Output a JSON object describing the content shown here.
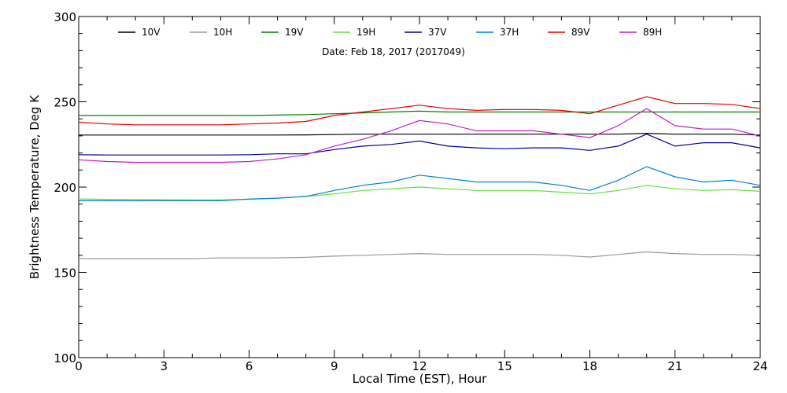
{
  "chart_data": {
    "type": "line",
    "title": "",
    "annotation": "Date: Feb 18, 2017 (2017049)",
    "xlabel": "Local Time (EST), Hour",
    "ylabel": "Brightness Temperature, Deg K",
    "xlim": [
      0,
      24
    ],
    "ylim": [
      100,
      300
    ],
    "xticks": [
      0,
      3,
      6,
      9,
      12,
      15,
      18,
      21,
      24
    ],
    "yticks": [
      100,
      150,
      200,
      250,
      300
    ],
    "grid": false,
    "legend_position": "top",
    "series": [
      {
        "name": "10V",
        "color": "#000000",
        "x": [
          0,
          1,
          2,
          3,
          4,
          5,
          6,
          7,
          8,
          9,
          10,
          11,
          12,
          13,
          14,
          15,
          16,
          17,
          18,
          19,
          20,
          21,
          22,
          23,
          24
        ],
        "y": [
          230.5,
          230.5,
          230.5,
          230.5,
          230.5,
          230.5,
          230.5,
          230.5,
          230.6,
          230.8,
          231,
          231,
          231,
          231,
          231,
          231,
          231,
          231,
          231,
          231,
          231.5,
          231,
          231,
          231,
          230.5
        ]
      },
      {
        "name": "10H",
        "color": "#9a9a9a",
        "x": [
          0,
          1,
          2,
          3,
          4,
          5,
          6,
          7,
          8,
          9,
          10,
          11,
          12,
          13,
          14,
          15,
          16,
          17,
          18,
          19,
          20,
          21,
          22,
          23,
          24
        ],
        "y": [
          158,
          158,
          158,
          158,
          158,
          158.5,
          158.5,
          158.5,
          158.8,
          159.5,
          160,
          160.5,
          161,
          160.5,
          160.5,
          160.5,
          160.5,
          160,
          159,
          160.5,
          162,
          161,
          160.5,
          160.5,
          160
        ]
      },
      {
        "name": "19V",
        "color": "#008000",
        "x": [
          0,
          1,
          2,
          3,
          4,
          5,
          6,
          7,
          8,
          9,
          10,
          11,
          12,
          13,
          14,
          15,
          16,
          17,
          18,
          19,
          20,
          21,
          22,
          23,
          24
        ],
        "y": [
          242,
          242,
          242,
          242,
          242,
          242,
          242,
          242.2,
          242.5,
          243,
          243.5,
          244,
          244.5,
          244,
          244,
          244,
          244,
          244,
          244,
          244,
          244,
          244,
          244,
          244,
          244
        ]
      },
      {
        "name": "19H",
        "color": "#66dd44",
        "x": [
          0,
          1,
          2,
          3,
          4,
          5,
          6,
          7,
          8,
          9,
          10,
          11,
          12,
          13,
          14,
          15,
          16,
          17,
          18,
          19,
          20,
          21,
          22,
          23,
          24
        ],
        "y": [
          193,
          192.8,
          192.7,
          192.6,
          192.5,
          192.5,
          192.8,
          193.5,
          194.5,
          196,
          198,
          199,
          200,
          199,
          198,
          198,
          198,
          197,
          196,
          198,
          201,
          199,
          198,
          198.5,
          197.5
        ]
      },
      {
        "name": "37V",
        "color": "#000090",
        "x": [
          0,
          1,
          2,
          3,
          4,
          5,
          6,
          7,
          8,
          9,
          10,
          11,
          12,
          13,
          14,
          15,
          16,
          17,
          18,
          19,
          20,
          21,
          22,
          23,
          24
        ],
        "y": [
          219,
          218.8,
          218.8,
          218.8,
          218.8,
          218.8,
          219,
          219.5,
          219.5,
          222,
          224,
          225,
          227,
          224,
          223,
          222.5,
          223,
          223,
          221.5,
          224,
          231,
          224,
          226,
          226,
          223
        ]
      },
      {
        "name": "37H",
        "color": "#0080d0",
        "x": [
          0,
          1,
          2,
          3,
          4,
          5,
          6,
          7,
          8,
          9,
          10,
          11,
          12,
          13,
          14,
          15,
          16,
          17,
          18,
          19,
          20,
          21,
          22,
          23,
          24
        ],
        "y": [
          192,
          192,
          192,
          192,
          192,
          192,
          193,
          193.5,
          194.5,
          198,
          201,
          203,
          207,
          205,
          203,
          203,
          203,
          201,
          198,
          204,
          212,
          206,
          203,
          204,
          201
        ]
      },
      {
        "name": "89V",
        "color": "#e00000",
        "x": [
          0,
          1,
          2,
          3,
          4,
          5,
          6,
          7,
          8,
          9,
          10,
          11,
          12,
          13,
          14,
          15,
          16,
          17,
          18,
          19,
          20,
          21,
          22,
          23,
          24
        ],
        "y": [
          238,
          237,
          236.5,
          236.5,
          236.5,
          236.5,
          237,
          237.5,
          238.5,
          242,
          244,
          246,
          248,
          246,
          245,
          245.5,
          245.5,
          245,
          243,
          248,
          253,
          249,
          249,
          248.5,
          246
        ]
      },
      {
        "name": "89H",
        "color": "#c020c0",
        "x": [
          0,
          1,
          2,
          3,
          4,
          5,
          6,
          7,
          8,
          9,
          10,
          11,
          12,
          13,
          14,
          15,
          16,
          17,
          18,
          19,
          20,
          21,
          22,
          23,
          24
        ],
        "y": [
          216,
          215,
          214.5,
          214.5,
          214.5,
          214.5,
          215,
          216.5,
          219,
          224,
          228,
          233,
          239,
          237,
          233,
          233,
          233,
          231,
          229,
          236,
          246,
          236,
          234,
          234,
          230
        ]
      }
    ]
  }
}
